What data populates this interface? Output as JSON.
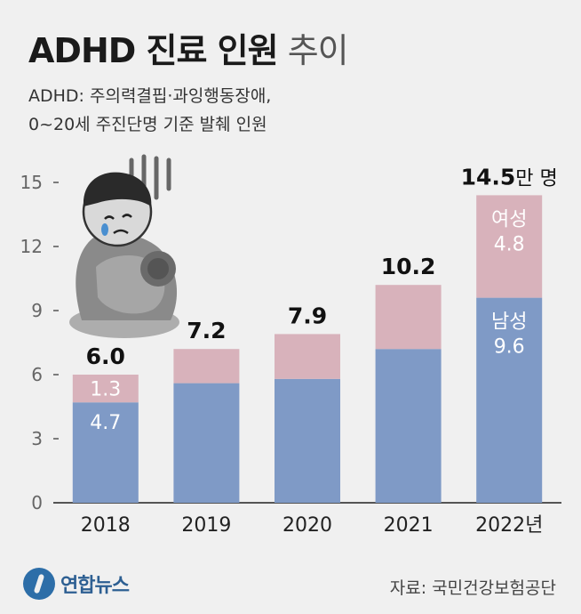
{
  "header": {
    "title_strong": "ADHD 진료 인원",
    "title_light": "추이",
    "subtitle_line1": "ADHD: 주의력결핍·과잉행동장애,",
    "subtitle_line2": "0~20세 주진단명 기준 발췌 인원"
  },
  "footer": {
    "source": "자료: 국민건강보험공단",
    "logo_text": "연합뉴스"
  },
  "colors": {
    "male": "#7f9ac6",
    "female": "#d8b2bb",
    "axis": "#555555",
    "grid": "#c8c8c8",
    "background": "#f0f0f0"
  },
  "chart_data": {
    "type": "bar",
    "stacked": true,
    "categories": [
      "2018",
      "2019",
      "2020",
      "2021",
      "2022년"
    ],
    "totals": [
      6.0,
      7.2,
      7.9,
      10.2,
      14.5
    ],
    "total_labels": [
      "6.0",
      "7.2",
      "7.9",
      "10.2",
      "14.5"
    ],
    "total_unit": "만 명",
    "series": [
      {
        "name": "남성",
        "values": [
          4.7,
          5.6,
          5.8,
          7.2,
          9.6
        ],
        "labels": [
          "4.7",
          "",
          "",
          "",
          "9.6"
        ]
      },
      {
        "name": "여성",
        "values": [
          1.3,
          1.6,
          2.1,
          3.0,
          4.8
        ],
        "labels": [
          "1.3",
          "",
          "",
          "",
          "4.8"
        ]
      }
    ],
    "yticks": [
      0,
      3,
      6,
      9,
      12,
      15
    ],
    "ylim": [
      0,
      15
    ],
    "grid": false
  }
}
